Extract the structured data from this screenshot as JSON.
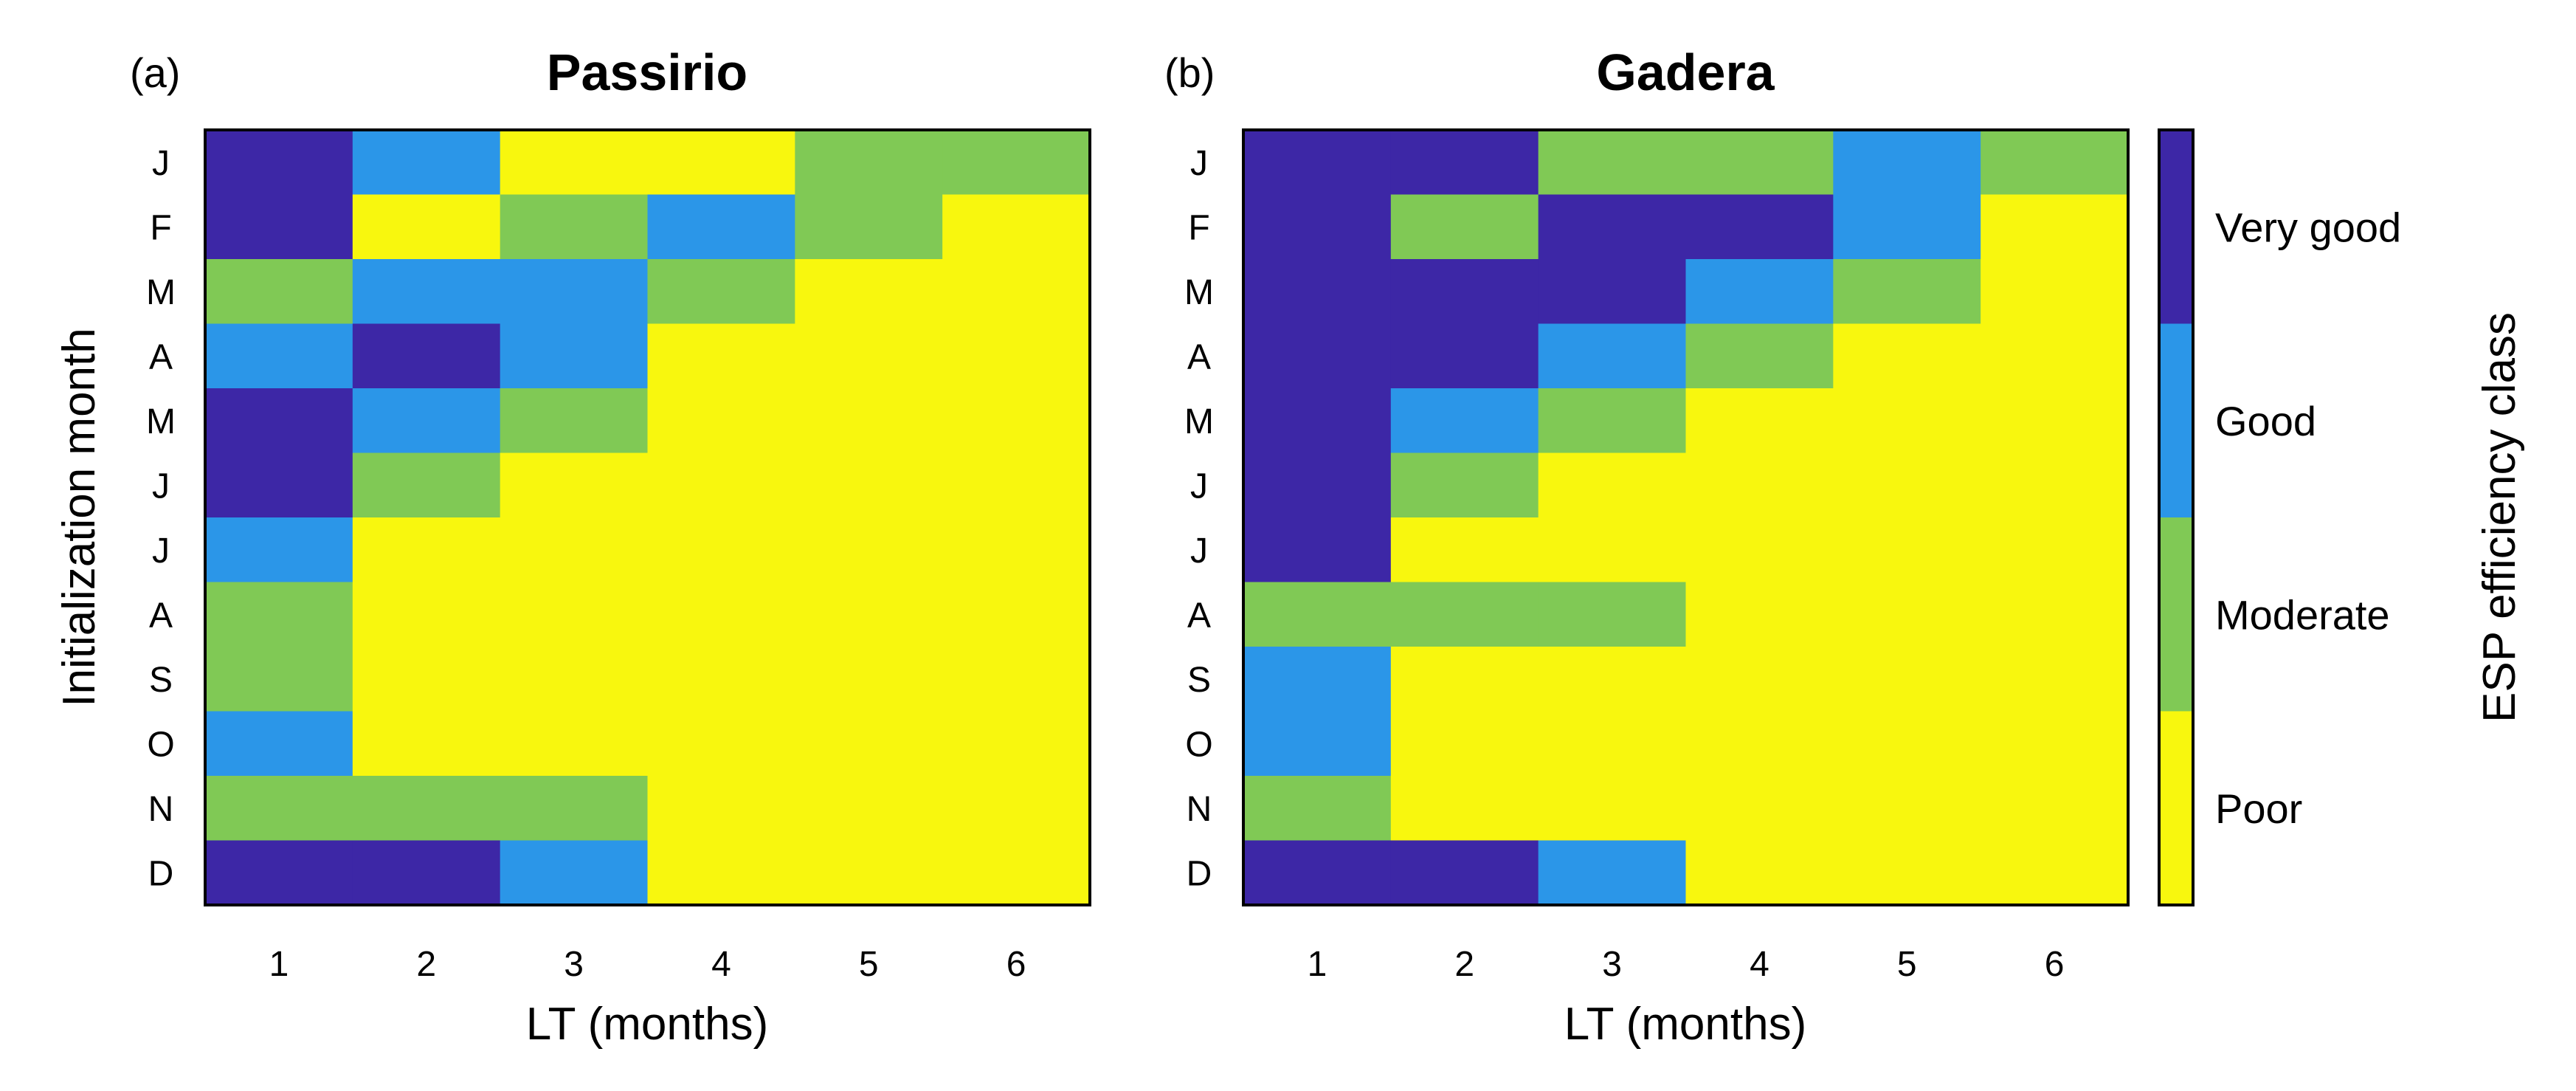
{
  "chart_data": [
    {
      "type": "heatmap",
      "panel_letter": "(a)",
      "title": "Passirio",
      "xlabel": "LT (months)",
      "ylabel": "Initialization month",
      "x": [
        "1",
        "2",
        "3",
        "4",
        "5",
        "6"
      ],
      "y": [
        "J",
        "F",
        "M",
        "A",
        "M",
        "J",
        "J",
        "A",
        "S",
        "O",
        "N",
        "D"
      ],
      "values": [
        [
          4,
          3,
          1,
          1,
          2,
          2
        ],
        [
          4,
          1,
          2,
          3,
          2,
          1
        ],
        [
          2,
          3,
          3,
          2,
          1,
          1
        ],
        [
          3,
          4,
          3,
          1,
          1,
          1
        ],
        [
          4,
          3,
          2,
          1,
          1,
          1
        ],
        [
          4,
          2,
          1,
          1,
          1,
          1
        ],
        [
          3,
          1,
          1,
          1,
          1,
          1
        ],
        [
          2,
          1,
          1,
          1,
          1,
          1
        ],
        [
          2,
          1,
          1,
          1,
          1,
          1
        ],
        [
          3,
          1,
          1,
          1,
          1,
          1
        ],
        [
          2,
          2,
          2,
          1,
          1,
          1
        ],
        [
          4,
          4,
          3,
          1,
          1,
          1
        ]
      ]
    },
    {
      "type": "heatmap",
      "panel_letter": "(b)",
      "title": "Gadera",
      "xlabel": "LT (months)",
      "ylabel": "",
      "x": [
        "1",
        "2",
        "3",
        "4",
        "5",
        "6"
      ],
      "y": [
        "J",
        "F",
        "M",
        "A",
        "M",
        "J",
        "J",
        "A",
        "S",
        "O",
        "N",
        "D"
      ],
      "values": [
        [
          4,
          4,
          2,
          2,
          3,
          2
        ],
        [
          4,
          2,
          4,
          4,
          3,
          1
        ],
        [
          4,
          4,
          4,
          3,
          2,
          1
        ],
        [
          4,
          4,
          3,
          2,
          1,
          1
        ],
        [
          4,
          3,
          2,
          1,
          1,
          1
        ],
        [
          4,
          2,
          1,
          1,
          1,
          1
        ],
        [
          4,
          1,
          1,
          1,
          1,
          1
        ],
        [
          2,
          2,
          2,
          1,
          1,
          1
        ],
        [
          3,
          1,
          1,
          1,
          1,
          1
        ],
        [
          3,
          1,
          1,
          1,
          1,
          1
        ],
        [
          2,
          1,
          1,
          1,
          1,
          1
        ],
        [
          4,
          4,
          3,
          1,
          1,
          1
        ]
      ]
    }
  ],
  "colorbar": {
    "label": "ESP efficiency class",
    "classes": [
      {
        "value": 4,
        "label": "Very good",
        "color": "#3d27a6"
      },
      {
        "value": 3,
        "label": "Good",
        "color": "#2b96e8"
      },
      {
        "value": 2,
        "label": "Moderate",
        "color": "#80c955"
      },
      {
        "value": 1,
        "label": "Poor",
        "color": "#f8f70e"
      }
    ]
  }
}
